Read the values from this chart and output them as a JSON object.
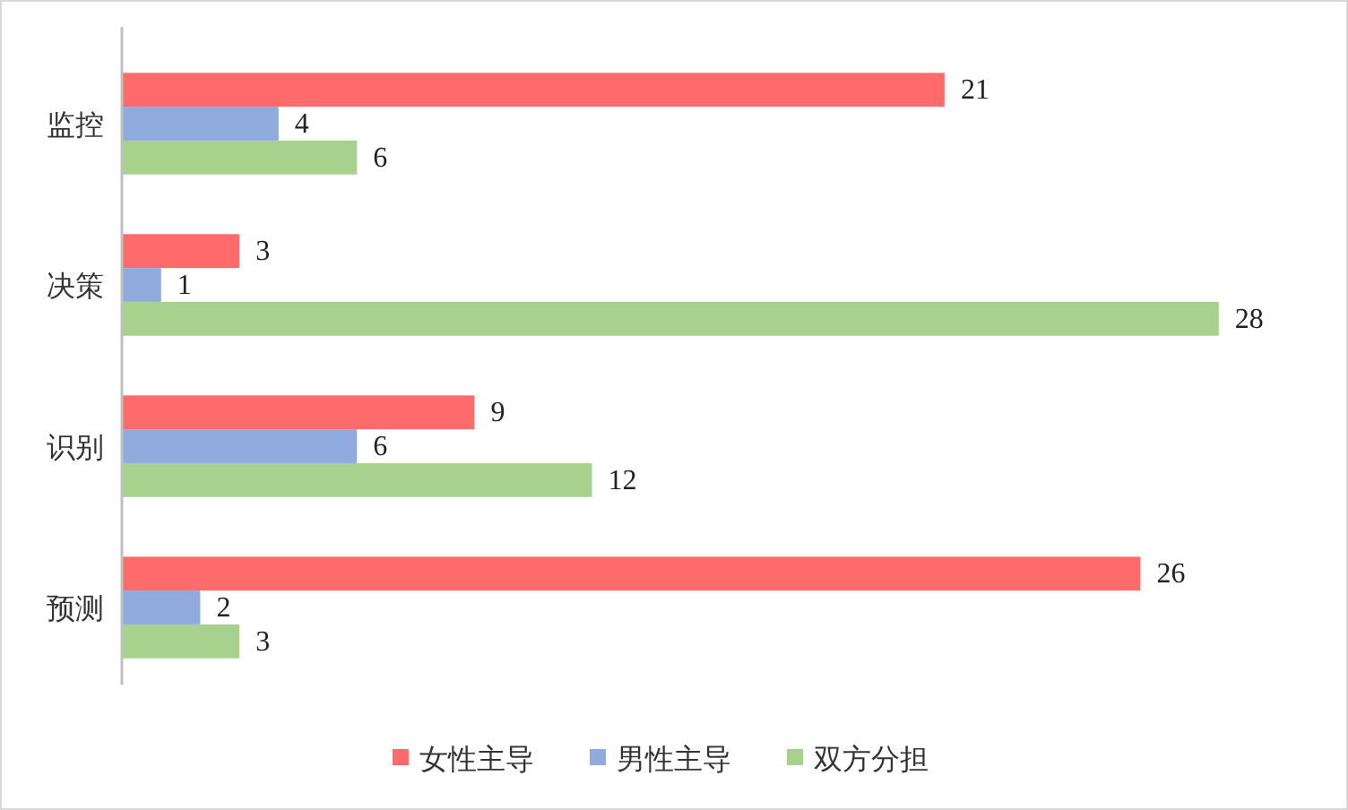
{
  "chart_data": {
    "type": "bar",
    "orientation": "horizontal",
    "categories": [
      "监控",
      "决策",
      "识别",
      "预测"
    ],
    "series": [
      {
        "name": "女性主导",
        "color": "#ff6b6b",
        "values": [
          21,
          3,
          9,
          26
        ]
      },
      {
        "name": "男性主导",
        "color": "#8faadc",
        "values": [
          4,
          1,
          6,
          2
        ]
      },
      {
        "name": "双方分担",
        "color": "#a9d18e",
        "values": [
          6,
          28,
          12,
          3
        ]
      }
    ],
    "data_labels": true,
    "legend": "bottom"
  }
}
